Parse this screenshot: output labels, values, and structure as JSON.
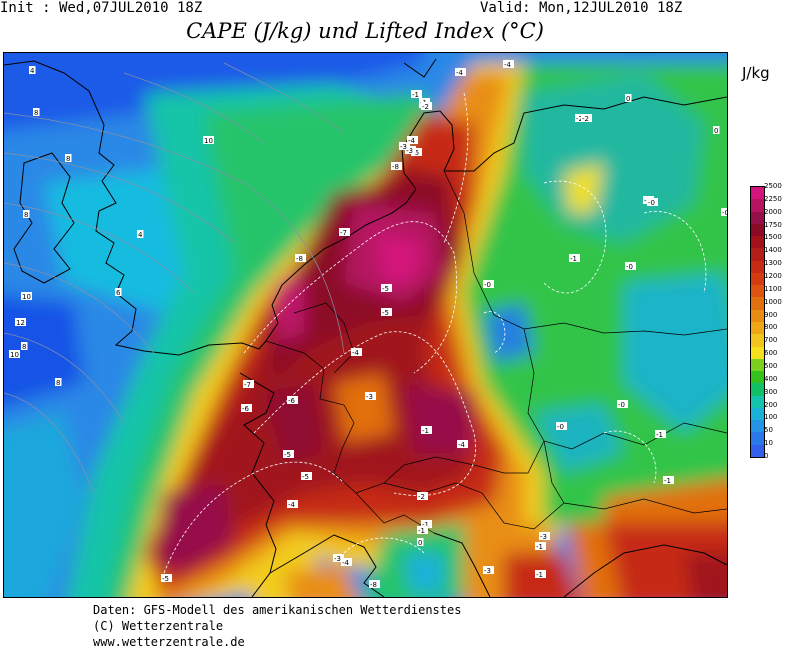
{
  "header": {
    "init": "Init : Wed,07JUL2010 18Z",
    "valid": "Valid: Mon,12JUL2010 18Z",
    "title": "CAPE (J/kg) und Lifted Index (°C)"
  },
  "legend": {
    "unit": "J/kg",
    "ticks": [
      "2500",
      "2250",
      "2000",
      "1750",
      "1500",
      "1400",
      "1300",
      "1200",
      "1100",
      "1000",
      "900",
      "800",
      "700",
      "600",
      "500",
      "400",
      "300",
      "200",
      "100",
      "50",
      "10",
      "0"
    ],
    "colors": [
      "#d4147c",
      "#b41460",
      "#961048",
      "#8c0a28",
      "#a4101c",
      "#b41e18",
      "#c82a14",
      "#d23c10",
      "#dc5410",
      "#e2700e",
      "#e88c12",
      "#eea816",
      "#f4c41e",
      "#f6e01c",
      "#7ad21e",
      "#34c21c",
      "#12c068",
      "#14c4ac",
      "#1ab0d8",
      "#2494e6",
      "#2a78ea",
      "#3060ec"
    ]
  },
  "map": {
    "contour_labels": [
      "-4",
      "-4",
      "-2",
      "0",
      "-1",
      "-1",
      "0",
      "-6",
      "-4",
      "-7",
      "-8",
      "-8",
      "-5",
      "-4",
      "-3",
      "-1",
      "-5",
      "-7",
      "-6",
      "-2",
      "-5",
      "-1",
      "-3",
      "-8",
      "-6",
      "-5",
      "-4",
      "-0",
      "-2",
      "0",
      "-1",
      "-5",
      "-3",
      "-3",
      "-1",
      "-3",
      "0",
      "-1",
      "-1",
      "-2",
      "-3",
      "-3",
      "-5",
      "-1",
      "-4",
      "0",
      "-1",
      "-0",
      "-0",
      "-1",
      "-0",
      "-0",
      "-0",
      "-4"
    ],
    "isobar_labels": [
      "4",
      "8",
      "10",
      "8",
      "8",
      "4",
      "6",
      "12",
      "10",
      "10",
      "8",
      "8"
    ]
  },
  "footer": {
    "line1": "Daten: GFS-Modell des amerikanischen Wetterdienstes",
    "line2": "(C) Wetterzentrale",
    "line3": "www.wetterzentrale.de"
  }
}
